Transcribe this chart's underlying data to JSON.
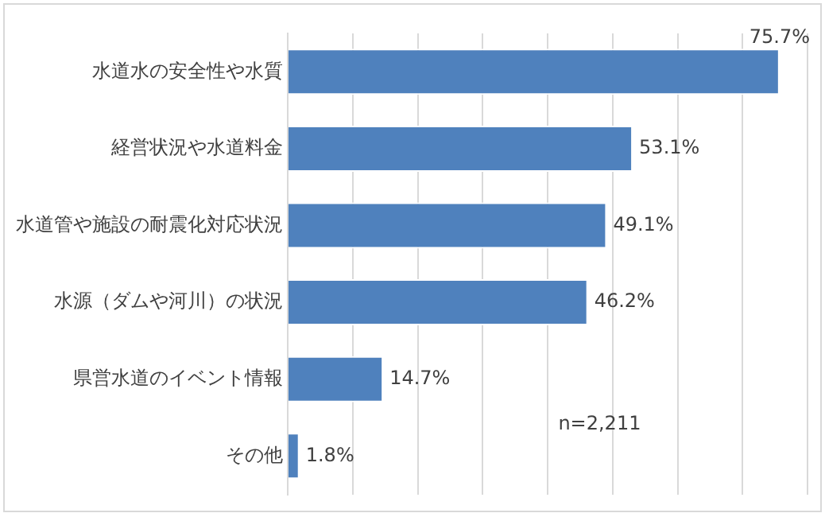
{
  "chart_data": {
    "type": "bar",
    "orientation": "horizontal",
    "categories": [
      "水道水の安全性や水質",
      "経営状況や水道料金",
      "水道管や施設の耐震化対応状況",
      "水源（ダムや河川）の状況",
      "県営水道のイベント情報",
      "その他"
    ],
    "values": [
      75.7,
      53.1,
      49.1,
      46.2,
      14.7,
      1.8
    ],
    "color": "#4f81bd",
    "xlim": [
      0,
      80
    ],
    "xticks": [
      {
        "value": 0,
        "label": null
      },
      {
        "value": 10,
        "label": null
      },
      {
        "value": 20,
        "label": null
      },
      {
        "value": 30,
        "label": null
      },
      {
        "value": 40,
        "label": null
      },
      {
        "value": 50,
        "label": null
      },
      {
        "value": 60,
        "label": null
      },
      {
        "value": 70,
        "label": null
      },
      {
        "value": 80,
        "label": null
      }
    ],
    "tick_labels": "y",
    "grid": "x",
    "legend": false,
    "value_labels": [
      "75.7%",
      "53.1%",
      "49.1%",
      "46.2%",
      "14.7%",
      "1.8%"
    ],
    "annotations": [
      "n=2,211"
    ]
  }
}
